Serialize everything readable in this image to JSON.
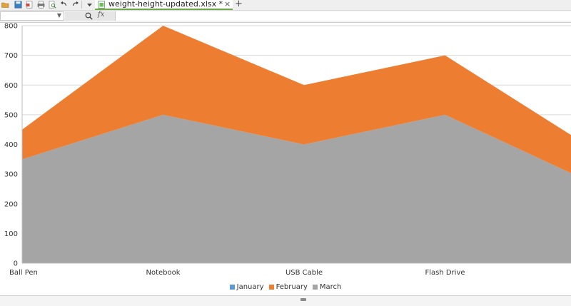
{
  "toolbar": {
    "icons": [
      "open-folder-icon",
      "save-icon",
      "export-icon",
      "print-icon",
      "print-preview-icon",
      "undo-icon",
      "redo-icon",
      "dropdown-icon"
    ],
    "tab": {
      "label": "weight-height-updated.xlsx *",
      "close": "×"
    },
    "add_tab": "+"
  },
  "formula_bar": {
    "namebox_value": "",
    "fx_label": "fx",
    "formula_value": ""
  },
  "chart_data": {
    "type": "area",
    "stacked": true,
    "categories": [
      "Ball Pen",
      "Notebook",
      "USB Cable",
      "Flash Drive",
      ""
    ],
    "series": [
      {
        "name": "January",
        "color": "#5b9bd5",
        "values": [
          0,
          0,
          0,
          0,
          0
        ]
      },
      {
        "name": "February",
        "color": "#ed7d31",
        "values": [
          100,
          300,
          200,
          200,
          120
        ]
      },
      {
        "name": "March",
        "color": "#a5a5a5",
        "values": [
          350,
          500,
          400,
          500,
          280
        ]
      }
    ],
    "y_ticks": [
      "0",
      "100",
      "200",
      "300",
      "400",
      "500",
      "600",
      "700",
      "800"
    ],
    "ylim": [
      0,
      800
    ],
    "grid": true,
    "legend_position": "bottom"
  }
}
